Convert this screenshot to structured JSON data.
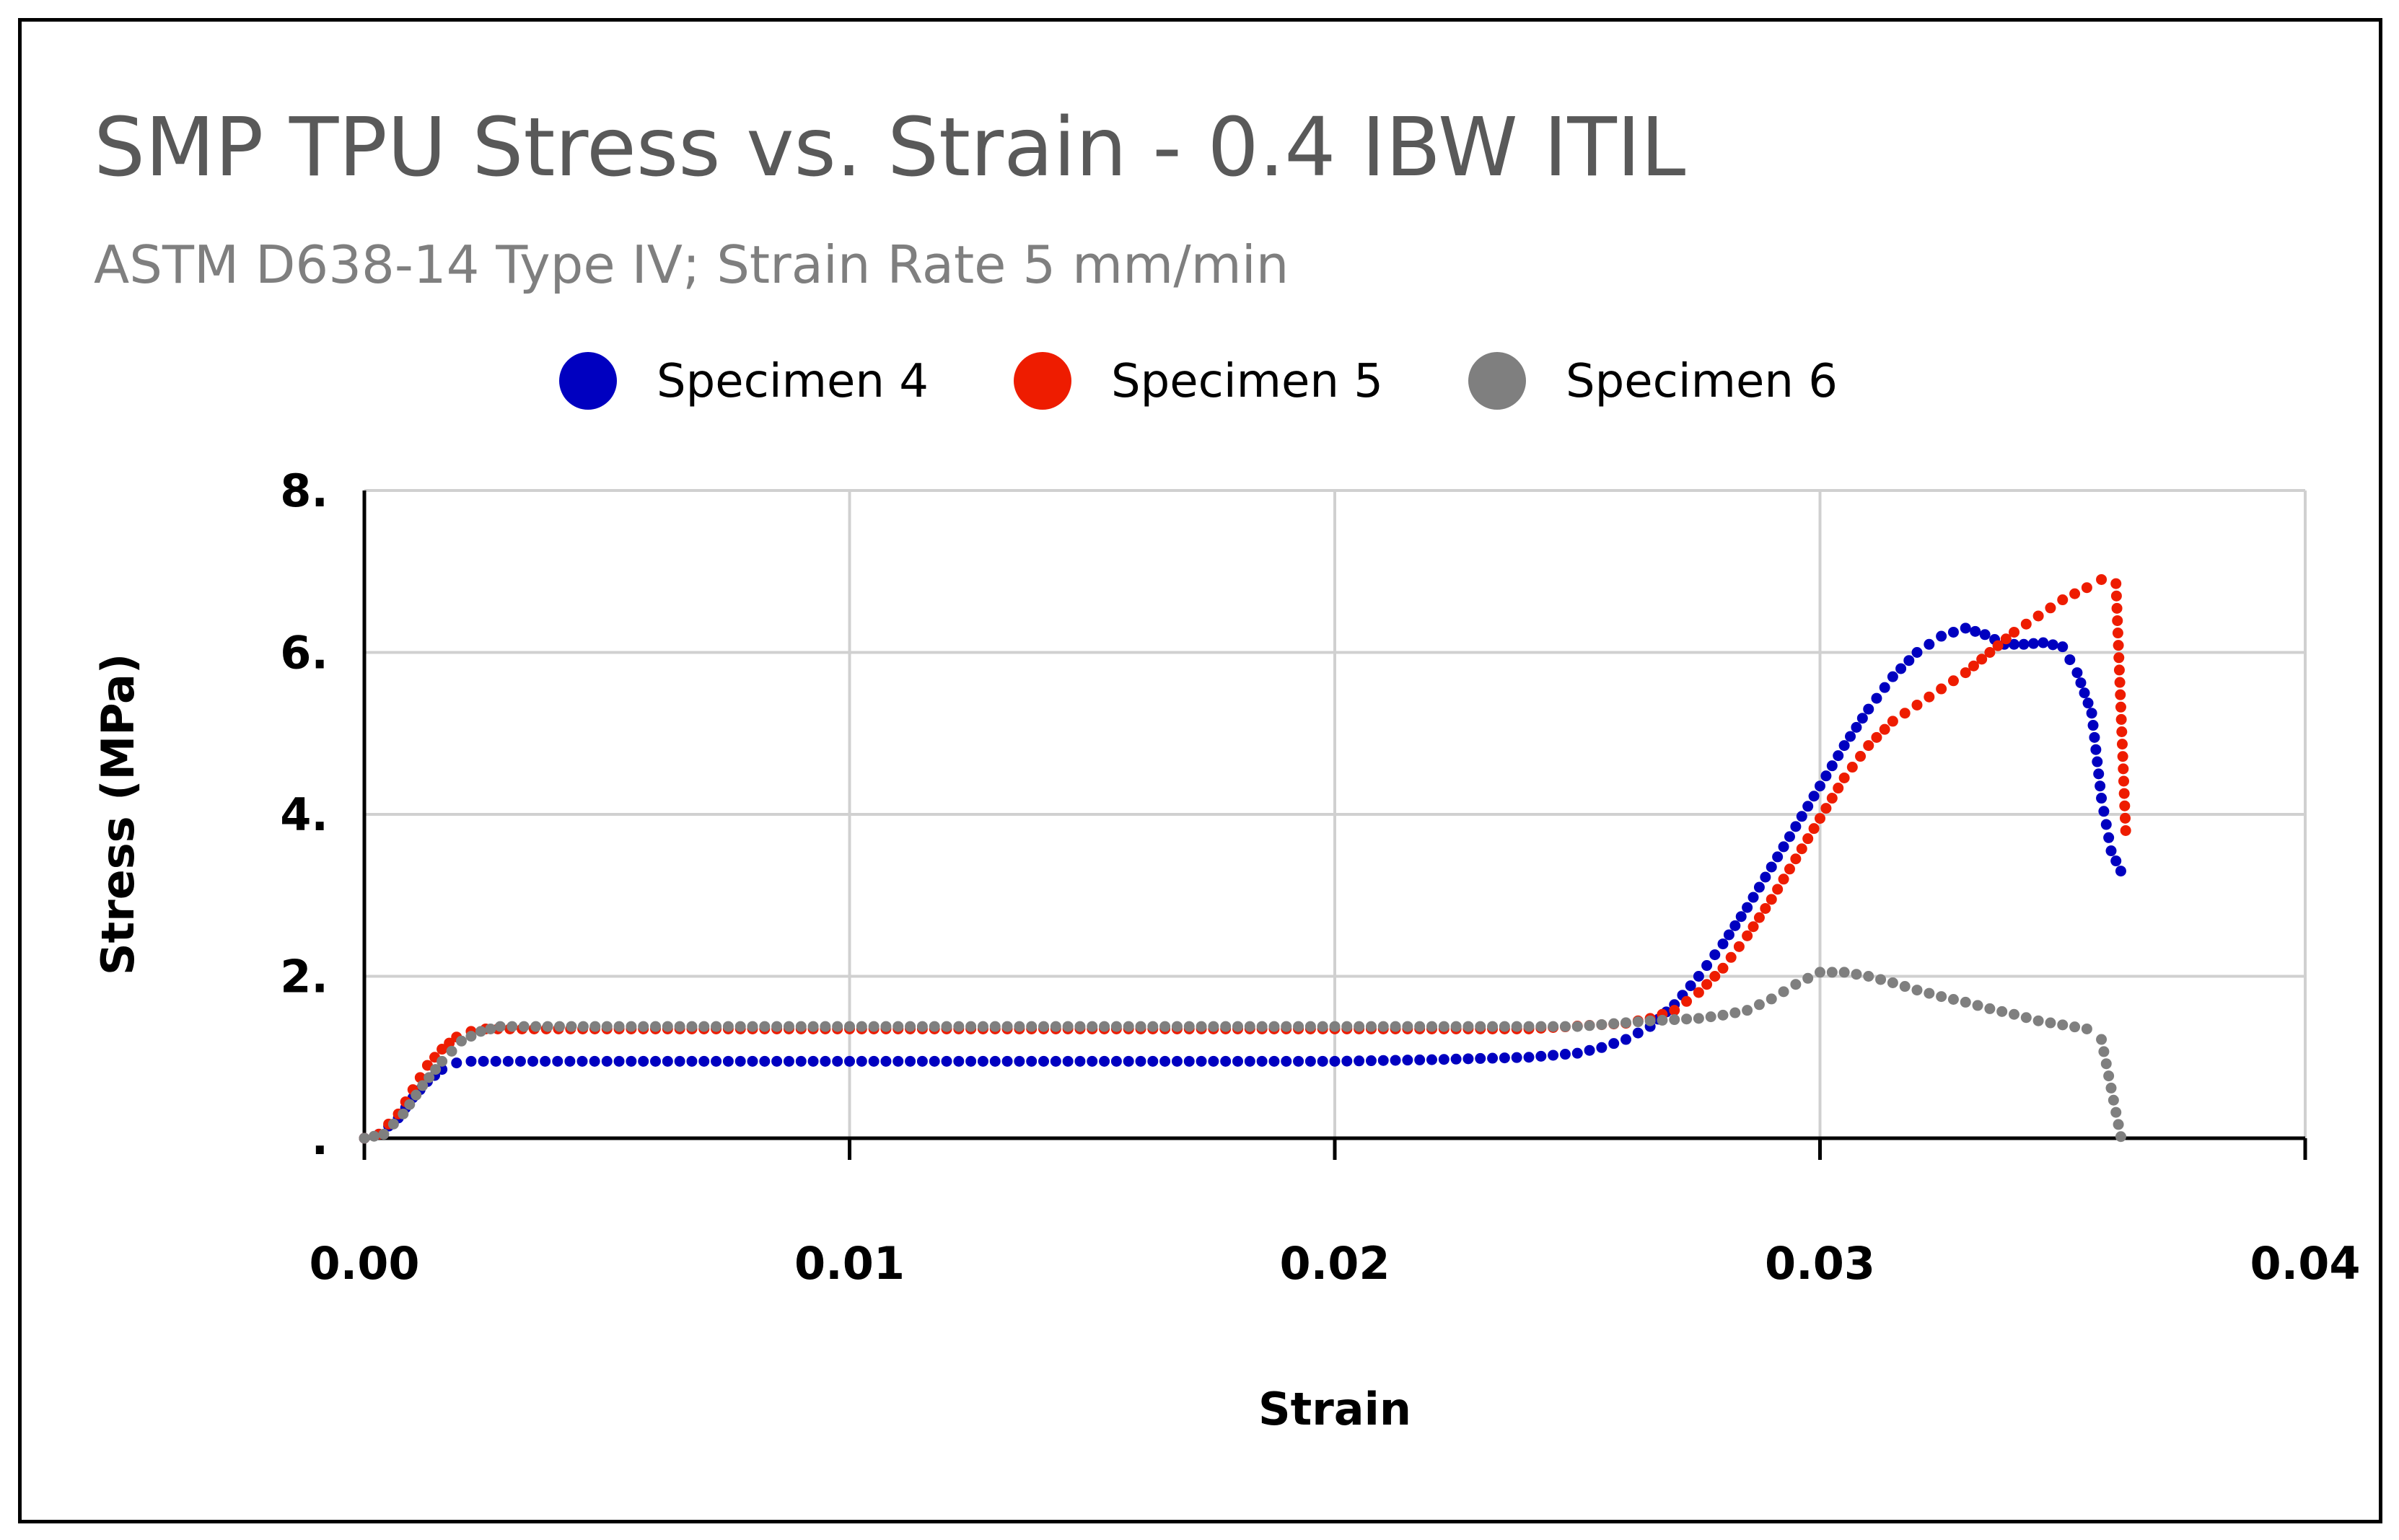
{
  "chart_data": {
    "type": "scatter",
    "title": "SMP TPU Stress vs. Strain - 0.4 IBW ITIL",
    "subtitle": "ASTM D638-14 Type IV; Strain Rate 5 mm/min",
    "xlabel": "Strain",
    "ylabel": "Stress (MPa)",
    "xlim": [
      0,
      0.04
    ],
    "ylim": [
      0,
      8
    ],
    "x_ticks": [
      0,
      0.01,
      0.02,
      0.03,
      0.04
    ],
    "x_tick_labels": [
      "0.00",
      "0.01",
      "0.02",
      "0.03",
      "0.04"
    ],
    "y_ticks": [
      0,
      2,
      4,
      6,
      8
    ],
    "y_tick_labels": [
      ".",
      "2.",
      "4.",
      "6.",
      "8."
    ],
    "grid": true,
    "legend_position": "top",
    "series": [
      {
        "name": "Specimen 4",
        "color": "#0000c0",
        "points": [
          [
            0,
            0
          ],
          [
            0.0003,
            0.05
          ],
          [
            0.0007,
            0.25
          ],
          [
            0.001,
            0.5
          ],
          [
            0.0013,
            0.7
          ],
          [
            0.0016,
            0.85
          ],
          [
            0.0019,
            0.93
          ],
          [
            0.0022,
            0.95
          ],
          [
            0.005,
            0.95
          ],
          [
            0.01,
            0.95
          ],
          [
            0.015,
            0.95
          ],
          [
            0.02,
            0.95
          ],
          [
            0.022,
            0.97
          ],
          [
            0.024,
            1.0
          ],
          [
            0.025,
            1.05
          ],
          [
            0.0255,
            1.12
          ],
          [
            0.026,
            1.22
          ],
          [
            0.0265,
            1.38
          ],
          [
            0.027,
            1.65
          ],
          [
            0.0275,
            2.0
          ],
          [
            0.028,
            2.4
          ],
          [
            0.0285,
            2.85
          ],
          [
            0.029,
            3.35
          ],
          [
            0.0295,
            3.85
          ],
          [
            0.03,
            4.35
          ],
          [
            0.0305,
            4.85
          ],
          [
            0.031,
            5.3
          ],
          [
            0.0315,
            5.7
          ],
          [
            0.032,
            6.0
          ],
          [
            0.0325,
            6.2
          ],
          [
            0.033,
            6.3
          ],
          [
            0.0334,
            6.22
          ],
          [
            0.0338,
            6.1
          ],
          [
            0.0342,
            6.1
          ],
          [
            0.0346,
            6.12
          ],
          [
            0.035,
            6.07
          ],
          [
            0.0353,
            5.75
          ],
          [
            0.0356,
            5.25
          ],
          [
            0.0358,
            4.2
          ],
          [
            0.036,
            3.55
          ],
          [
            0.0362,
            3.3
          ]
        ]
      },
      {
        "name": "Specimen 5",
        "color": "#ee1c00",
        "points": [
          [
            0,
            0
          ],
          [
            0.0003,
            0.05
          ],
          [
            0.0007,
            0.3
          ],
          [
            0.001,
            0.6
          ],
          [
            0.0013,
            0.9
          ],
          [
            0.0016,
            1.1
          ],
          [
            0.0019,
            1.25
          ],
          [
            0.0022,
            1.32
          ],
          [
            0.0025,
            1.35
          ],
          [
            0.005,
            1.35
          ],
          [
            0.01,
            1.35
          ],
          [
            0.015,
            1.35
          ],
          [
            0.02,
            1.35
          ],
          [
            0.024,
            1.35
          ],
          [
            0.026,
            1.42
          ],
          [
            0.0265,
            1.48
          ],
          [
            0.027,
            1.58
          ],
          [
            0.0275,
            1.8
          ],
          [
            0.028,
            2.1
          ],
          [
            0.0285,
            2.5
          ],
          [
            0.029,
            2.95
          ],
          [
            0.0295,
            3.45
          ],
          [
            0.03,
            3.95
          ],
          [
            0.0305,
            4.45
          ],
          [
            0.031,
            4.85
          ],
          [
            0.0315,
            5.15
          ],
          [
            0.032,
            5.35
          ],
          [
            0.0325,
            5.55
          ],
          [
            0.033,
            5.75
          ],
          [
            0.0335,
            6.0
          ],
          [
            0.034,
            6.25
          ],
          [
            0.0345,
            6.45
          ],
          [
            0.035,
            6.65
          ],
          [
            0.0355,
            6.8
          ],
          [
            0.0358,
            6.9
          ],
          [
            0.0361,
            6.85
          ],
          [
            0.0363,
            3.8
          ]
        ]
      },
      {
        "name": "Specimen 6",
        "color": "#7f7f7f",
        "points": [
          [
            0,
            0
          ],
          [
            0.0004,
            0.05
          ],
          [
            0.0008,
            0.3
          ],
          [
            0.0012,
            0.65
          ],
          [
            0.0016,
            0.95
          ],
          [
            0.002,
            1.2
          ],
          [
            0.0024,
            1.32
          ],
          [
            0.0028,
            1.38
          ],
          [
            0.005,
            1.38
          ],
          [
            0.01,
            1.38
          ],
          [
            0.015,
            1.38
          ],
          [
            0.02,
            1.38
          ],
          [
            0.025,
            1.38
          ],
          [
            0.0265,
            1.45
          ],
          [
            0.0275,
            1.48
          ],
          [
            0.028,
            1.52
          ],
          [
            0.0285,
            1.58
          ],
          [
            0.029,
            1.72
          ],
          [
            0.0295,
            1.9
          ],
          [
            0.03,
            2.05
          ],
          [
            0.0305,
            2.05
          ],
          [
            0.031,
            2.0
          ],
          [
            0.0315,
            1.92
          ],
          [
            0.032,
            1.83
          ],
          [
            0.0325,
            1.75
          ],
          [
            0.033,
            1.68
          ],
          [
            0.0335,
            1.6
          ],
          [
            0.034,
            1.53
          ],
          [
            0.0345,
            1.45
          ],
          [
            0.035,
            1.4
          ],
          [
            0.0355,
            1.35
          ],
          [
            0.0358,
            1.22
          ],
          [
            0.0362,
            0.02
          ]
        ]
      }
    ]
  }
}
